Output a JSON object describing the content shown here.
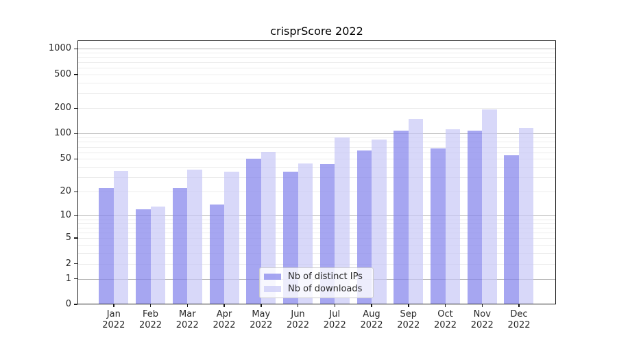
{
  "chart_data": {
    "type": "bar",
    "title": "crisprScore 2022",
    "categories": [
      "Jan",
      "Feb",
      "Mar",
      "Apr",
      "May",
      "Jun",
      "Jul",
      "Aug",
      "Sep",
      "Oct",
      "Nov",
      "Dec"
    ],
    "year": "2022",
    "series": [
      {
        "name": "Nb of distinct IPs",
        "color": "rgba(132,132,236,0.72)",
        "color_hex": "#a6a6ef",
        "values": [
          22,
          12,
          22,
          14,
          50,
          35,
          43,
          63,
          109,
          67,
          109,
          55
        ]
      },
      {
        "name": "Nb of downloads",
        "color": "rgba(200,200,246,0.70)",
        "color_hex": "#d8d8f8",
        "values": [
          36,
          13,
          37,
          35,
          61,
          44,
          90,
          85,
          150,
          112,
          195,
          117
        ]
      }
    ],
    "y_ticks": [
      0,
      1,
      2,
      5,
      10,
      20,
      50,
      100,
      200,
      500,
      1000
    ],
    "y_scale": "log10(1+x)",
    "y_axis_top_value": 1260,
    "major_gridline_values": [
      1,
      10,
      100,
      1000
    ],
    "grid": true,
    "legend_position": "lower center",
    "major_grid_color": "#b3b3b3",
    "minor_grid_color": "#ececec",
    "axis_color": "#1a1a1a",
    "text_color": "#262626",
    "background_color": "#ffffff"
  }
}
